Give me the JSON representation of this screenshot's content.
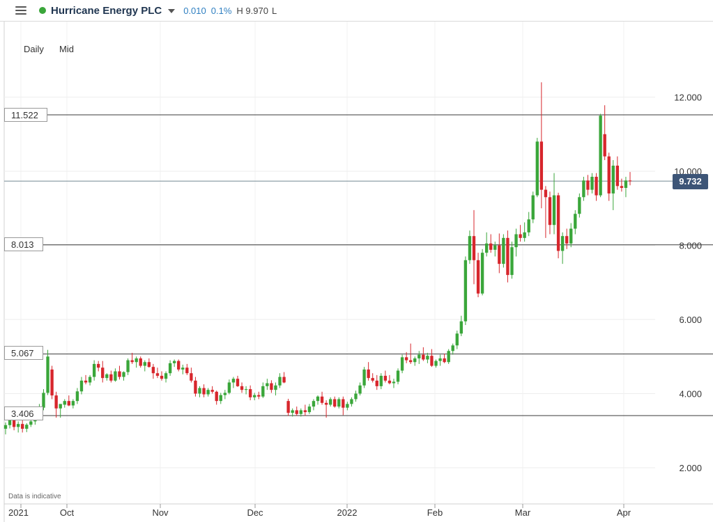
{
  "header": {
    "instrument": "Hurricane Energy PLC",
    "change": "0.010",
    "change_pct": "0.1%",
    "high_low": "H 9.970",
    "low_label": "L"
  },
  "chart_settings": {
    "period": "Daily",
    "price_type": "Mid",
    "disclaimer": "Data is indicative"
  },
  "colors": {
    "up": "#3aa63a",
    "down": "#d7262c",
    "title": "#1f3550",
    "accent": "#2f7fc1",
    "price_tag": "#3d5577"
  },
  "chart_data": {
    "type": "candlestick",
    "title": "",
    "xlabel": "",
    "ylabel": "",
    "ylim": [
      0.8,
      12.6
    ],
    "y_ticks": [
      "2.000",
      "4.000",
      "6.000",
      "8.000",
      "10.000",
      "12.000"
    ],
    "x_ticks": [
      "2021",
      "Oct",
      "Nov",
      "Dec",
      "2022",
      "Feb",
      "Mar",
      "Apr"
    ],
    "horizontal_levels": [
      "11.522",
      "8.013",
      "5.067",
      "3.406"
    ],
    "current_price": "9.732",
    "grid": true,
    "candles": [
      [
        3.05,
        3.22,
        2.9,
        3.15
      ],
      [
        3.15,
        3.42,
        3.06,
        3.32
      ],
      [
        3.3,
        3.38,
        3.01,
        3.1
      ],
      [
        3.1,
        3.25,
        2.95,
        3.18
      ],
      [
        3.18,
        3.28,
        2.95,
        3.05
      ],
      [
        3.05,
        3.2,
        2.96,
        3.16
      ],
      [
        3.16,
        3.4,
        3.1,
        3.25
      ],
      [
        3.25,
        3.46,
        3.16,
        3.36
      ],
      [
        3.36,
        3.72,
        3.3,
        3.62
      ],
      [
        3.62,
        4.12,
        3.55,
        4.02
      ],
      [
        4.02,
        5.18,
        3.96,
        5.0
      ],
      [
        4.65,
        4.75,
        3.85,
        3.95
      ],
      [
        3.95,
        4.05,
        3.35,
        3.6
      ],
      [
        3.6,
        3.72,
        3.35,
        3.72
      ],
      [
        3.7,
        3.85,
        3.62,
        3.8
      ],
      [
        3.8,
        3.95,
        3.66,
        3.68
      ],
      [
        3.68,
        3.85,
        3.6,
        3.8
      ],
      [
        3.8,
        4.15,
        3.72,
        4.06
      ],
      [
        4.06,
        4.45,
        3.98,
        4.35
      ],
      [
        4.35,
        4.5,
        4.25,
        4.3
      ],
      [
        4.3,
        4.5,
        4.22,
        4.45
      ],
      [
        4.45,
        4.9,
        4.35,
        4.8
      ],
      [
        4.8,
        4.88,
        4.6,
        4.7
      ],
      [
        4.7,
        4.88,
        4.3,
        4.42
      ],
      [
        4.42,
        4.55,
        4.35,
        4.52
      ],
      [
        4.52,
        4.62,
        4.3,
        4.35
      ],
      [
        4.35,
        4.68,
        4.32,
        4.6
      ],
      [
        4.6,
        4.75,
        4.38,
        4.45
      ],
      [
        4.45,
        4.6,
        4.35,
        4.58
      ],
      [
        4.58,
        4.95,
        4.5,
        4.9
      ],
      [
        4.9,
        5.1,
        4.8,
        4.85
      ],
      [
        4.85,
        5.0,
        4.7,
        4.95
      ],
      [
        4.95,
        5.0,
        4.7,
        4.75
      ],
      [
        4.75,
        4.9,
        4.6,
        4.85
      ],
      [
        4.85,
        4.95,
        4.7,
        4.72
      ],
      [
        4.72,
        4.8,
        4.4,
        4.55
      ],
      [
        4.55,
        4.7,
        4.42,
        4.48
      ],
      [
        4.48,
        4.6,
        4.35,
        4.4
      ],
      [
        4.4,
        4.6,
        4.3,
        4.55
      ],
      [
        4.55,
        4.9,
        4.48,
        4.82
      ],
      [
        4.82,
        4.92,
        4.72,
        4.88
      ],
      [
        4.88,
        4.92,
        4.6,
        4.65
      ],
      [
        4.65,
        4.78,
        4.52,
        4.7
      ],
      [
        4.7,
        4.8,
        4.5,
        4.55
      ],
      [
        4.55,
        4.7,
        4.3,
        4.35
      ],
      [
        4.35,
        4.45,
        3.92,
        4.0
      ],
      [
        4.0,
        4.2,
        3.9,
        4.15
      ],
      [
        4.15,
        4.25,
        3.9,
        3.98
      ],
      [
        3.98,
        4.15,
        3.92,
        4.1
      ],
      [
        4.1,
        4.2,
        4.0,
        4.05
      ],
      [
        4.05,
        4.08,
        3.7,
        3.8
      ],
      [
        3.8,
        4.02,
        3.72,
        3.96
      ],
      [
        3.96,
        4.1,
        3.85,
        4.02
      ],
      [
        4.02,
        4.38,
        3.98,
        4.3
      ],
      [
        4.3,
        4.45,
        4.15,
        4.4
      ],
      [
        4.4,
        4.48,
        4.18,
        4.2
      ],
      [
        4.2,
        4.3,
        4.02,
        4.1
      ],
      [
        4.1,
        4.2,
        3.98,
        4.12
      ],
      [
        4.12,
        4.22,
        3.82,
        3.9
      ],
      [
        3.9,
        4.02,
        3.82,
        3.96
      ],
      [
        3.96,
        4.05,
        3.85,
        3.92
      ],
      [
        3.92,
        4.3,
        3.88,
        4.2
      ],
      [
        4.2,
        4.4,
        4.1,
        4.28
      ],
      [
        4.28,
        4.36,
        4.02,
        4.1
      ],
      [
        4.1,
        4.3,
        3.95,
        4.22
      ],
      [
        4.22,
        4.55,
        4.15,
        4.45
      ],
      [
        4.45,
        4.58,
        4.28,
        4.3
      ],
      [
        3.8,
        3.86,
        3.4,
        3.48
      ],
      [
        3.48,
        3.6,
        3.38,
        3.55
      ],
      [
        3.55,
        3.65,
        3.4,
        3.45
      ],
      [
        3.45,
        3.6,
        3.38,
        3.55
      ],
      [
        3.55,
        3.7,
        3.4,
        3.5
      ],
      [
        3.5,
        3.72,
        3.45,
        3.65
      ],
      [
        3.65,
        3.85,
        3.55,
        3.8
      ],
      [
        3.8,
        3.95,
        3.7,
        3.92
      ],
      [
        3.92,
        4.05,
        3.7,
        3.75
      ],
      [
        3.75,
        3.82,
        3.35,
        3.7
      ],
      [
        3.7,
        3.9,
        3.65,
        3.85
      ],
      [
        3.85,
        3.92,
        3.62,
        3.65
      ],
      [
        3.65,
        3.9,
        3.6,
        3.85
      ],
      [
        3.85,
        3.92,
        3.42,
        3.62
      ],
      [
        3.62,
        3.78,
        3.55,
        3.72
      ],
      [
        3.72,
        3.9,
        3.65,
        3.85
      ],
      [
        3.85,
        4.08,
        3.78,
        4.0
      ],
      [
        4.0,
        4.3,
        3.95,
        4.22
      ],
      [
        4.22,
        4.72,
        4.15,
        4.65
      ],
      [
        4.65,
        4.85,
        4.35,
        4.42
      ],
      [
        4.42,
        4.55,
        4.3,
        4.35
      ],
      [
        4.35,
        4.5,
        4.1,
        4.2
      ],
      [
        4.2,
        4.55,
        4.12,
        4.48
      ],
      [
        4.48,
        4.62,
        4.3,
        4.35
      ],
      [
        4.35,
        4.5,
        4.25,
        4.28
      ],
      [
        4.28,
        4.4,
        4.15,
        4.32
      ],
      [
        4.32,
        4.68,
        4.25,
        4.62
      ],
      [
        4.62,
        5.05,
        4.55,
        4.98
      ],
      [
        4.98,
        5.12,
        4.82,
        4.9
      ],
      [
        4.9,
        5.35,
        4.8,
        4.85
      ],
      [
        4.85,
        5.0,
        4.75,
        4.95
      ],
      [
        4.95,
        5.15,
        4.8,
        5.05
      ],
      [
        5.05,
        5.25,
        4.88,
        4.92
      ],
      [
        4.92,
        5.1,
        4.82,
        5.02
      ],
      [
        5.02,
        5.2,
        4.72,
        4.75
      ],
      [
        4.75,
        4.92,
        4.7,
        4.88
      ],
      [
        4.88,
        5.05,
        4.75,
        4.95
      ],
      [
        4.95,
        5.08,
        4.82,
        4.85
      ],
      [
        4.85,
        5.2,
        4.8,
        5.15
      ],
      [
        5.15,
        5.35,
        5.05,
        5.3
      ],
      [
        5.3,
        5.7,
        5.2,
        5.62
      ],
      [
        5.62,
        6.1,
        5.55,
        5.95
      ],
      [
        5.95,
        7.7,
        5.85,
        7.6
      ],
      [
        7.6,
        8.4,
        7.5,
        8.25
      ],
      [
        8.25,
        8.95,
        6.95,
        7.6
      ],
      [
        7.6,
        7.8,
        6.6,
        6.7
      ],
      [
        6.7,
        7.9,
        6.65,
        7.8
      ],
      [
        7.8,
        8.35,
        7.7,
        8.05
      ],
      [
        8.05,
        8.3,
        7.8,
        7.88
      ],
      [
        7.88,
        8.1,
        7.7,
        8.0
      ],
      [
        8.0,
        8.32,
        7.25,
        7.5
      ],
      [
        7.5,
        8.3,
        7.4,
        8.2
      ],
      [
        8.2,
        8.4,
        7.0,
        7.2
      ],
      [
        7.2,
        8.1,
        7.1,
        7.95
      ],
      [
        7.95,
        8.45,
        7.7,
        8.3
      ],
      [
        8.3,
        8.55,
        8.1,
        8.2
      ],
      [
        8.2,
        8.62,
        8.1,
        8.35
      ],
      [
        8.35,
        8.9,
        8.25,
        8.7
      ],
      [
        8.7,
        9.45,
        8.6,
        9.35
      ],
      [
        9.35,
        10.9,
        9.3,
        10.8
      ],
      [
        10.8,
        12.4,
        9.0,
        9.5
      ],
      [
        9.5,
        9.6,
        8.2,
        9.3
      ],
      [
        9.3,
        9.45,
        8.3,
        8.55
      ],
      [
        8.55,
        9.95,
        8.3,
        9.35
      ],
      [
        9.35,
        9.42,
        7.65,
        7.85
      ],
      [
        7.85,
        8.35,
        7.5,
        8.25
      ],
      [
        8.25,
        8.45,
        7.9,
        8.05
      ],
      [
        8.05,
        8.6,
        7.95,
        8.45
      ],
      [
        8.45,
        8.95,
        8.3,
        8.85
      ],
      [
        8.85,
        9.4,
        8.75,
        9.3
      ],
      [
        9.3,
        9.85,
        9.2,
        9.75
      ],
      [
        9.75,
        9.9,
        9.35,
        9.5
      ],
      [
        9.5,
        9.95,
        9.4,
        9.85
      ],
      [
        9.85,
        9.95,
        9.2,
        9.35
      ],
      [
        9.35,
        11.55,
        9.3,
        11.5
      ],
      [
        11.0,
        11.78,
        10.3,
        10.4
      ],
      [
        10.4,
        10.5,
        9.2,
        9.4
      ],
      [
        9.4,
        10.3,
        8.95,
        10.15
      ],
      [
        10.15,
        10.4,
        9.5,
        9.6
      ],
      [
        9.6,
        9.8,
        9.45,
        9.55
      ],
      [
        9.55,
        9.85,
        9.3,
        9.75
      ],
      [
        9.75,
        9.98,
        9.62,
        9.73
      ]
    ]
  }
}
